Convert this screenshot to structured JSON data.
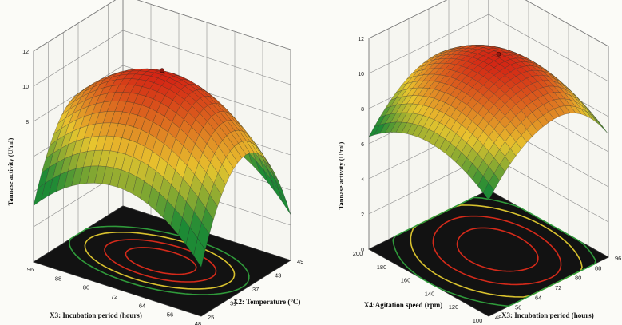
{
  "chart_data": [
    {
      "type": "surface",
      "zlabel": "Tannase activity (U/ml)",
      "xlabel": "X3: Incubation period (hours)",
      "ylabel": "X2: Temperature (°C)",
      "x_ticks": [
        "96",
        "88",
        "80",
        "72",
        "64",
        "56",
        "48"
      ],
      "y_ticks": [
        "25",
        "31",
        "37",
        "43",
        "49"
      ],
      "z_ticks": [
        "12",
        "10",
        "8"
      ],
      "xlim": [
        48,
        96
      ],
      "ylim": [
        25,
        49
      ],
      "zlim": [
        0,
        12
      ],
      "optimum": {
        "x": 72,
        "y": 37,
        "z": 10.6
      },
      "edge_values": {
        "x_min": 8.0,
        "x_max": 7.6,
        "y_min": 5.8,
        "y_max": 5.6
      },
      "contours": true,
      "grid": true
    },
    {
      "type": "surface",
      "zlabel": "Tannase activity (U/ml)",
      "xlabel": "X4:Agitation speed (rpm)",
      "ylabel": "X3: Incubation period (hours)",
      "x_ticks": [
        "200",
        "180",
        "160",
        "140",
        "120",
        "100"
      ],
      "y_ticks": [
        "48",
        "56",
        "64",
        "72",
        "80",
        "88",
        "96"
      ],
      "z_ticks": [
        "12",
        "10",
        "8",
        "6",
        "4",
        "2",
        "0"
      ],
      "xlim": [
        100,
        200
      ],
      "ylim": [
        48,
        96
      ],
      "zlim": [
        0,
        12
      ],
      "optimum": {
        "x": 150,
        "y": 76,
        "z": 10.8
      },
      "edge_values": {
        "x_min": 9.2,
        "x_max": 9.4,
        "y_min": 8.0,
        "y_max": 8.4
      },
      "contours": true,
      "grid": true
    }
  ],
  "colors": {
    "high": "#d32414",
    "mid": "#e8c52e",
    "low": "#1d8a35",
    "floor": "#121212",
    "contour_red": "#d42a1a",
    "contour_yellow": "#d8c12e",
    "contour_green": "#2f9a3a"
  }
}
